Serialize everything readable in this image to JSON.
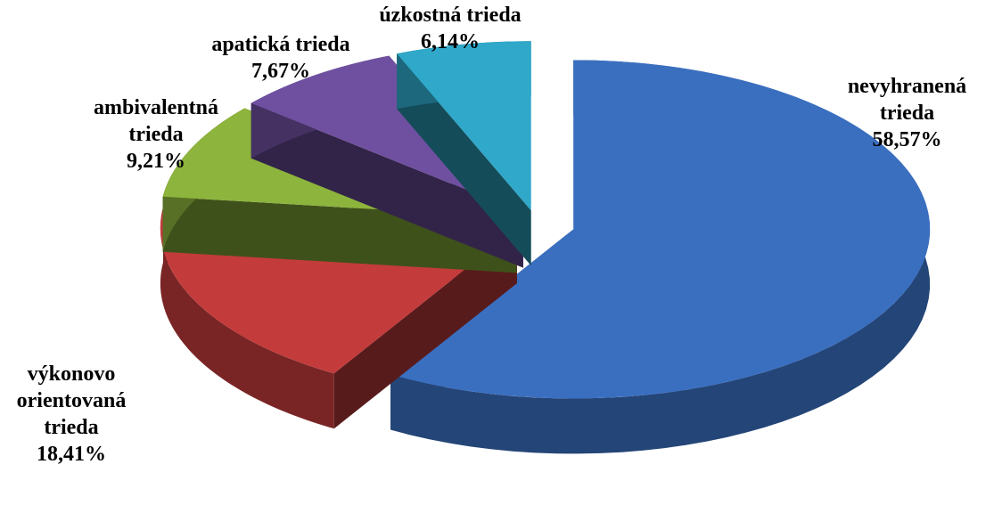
{
  "chart_data": {
    "type": "pie3d",
    "categories": [
      "nevyhranená trieda",
      "výkonovo orientovaná trieda",
      "ambivalentná trieda",
      "apatická trieda",
      "úzkostná trieda"
    ],
    "values": [
      58.57,
      18.41,
      9.21,
      7.67,
      6.14
    ],
    "value_labels": [
      "58,57%",
      "18,41%",
      "9,21%",
      "7,67%",
      "6,14%"
    ],
    "colors": [
      "#3a6fc0",
      "#c43b3c",
      "#8db43c",
      "#6f50a0",
      "#2fa8c9"
    ]
  }
}
